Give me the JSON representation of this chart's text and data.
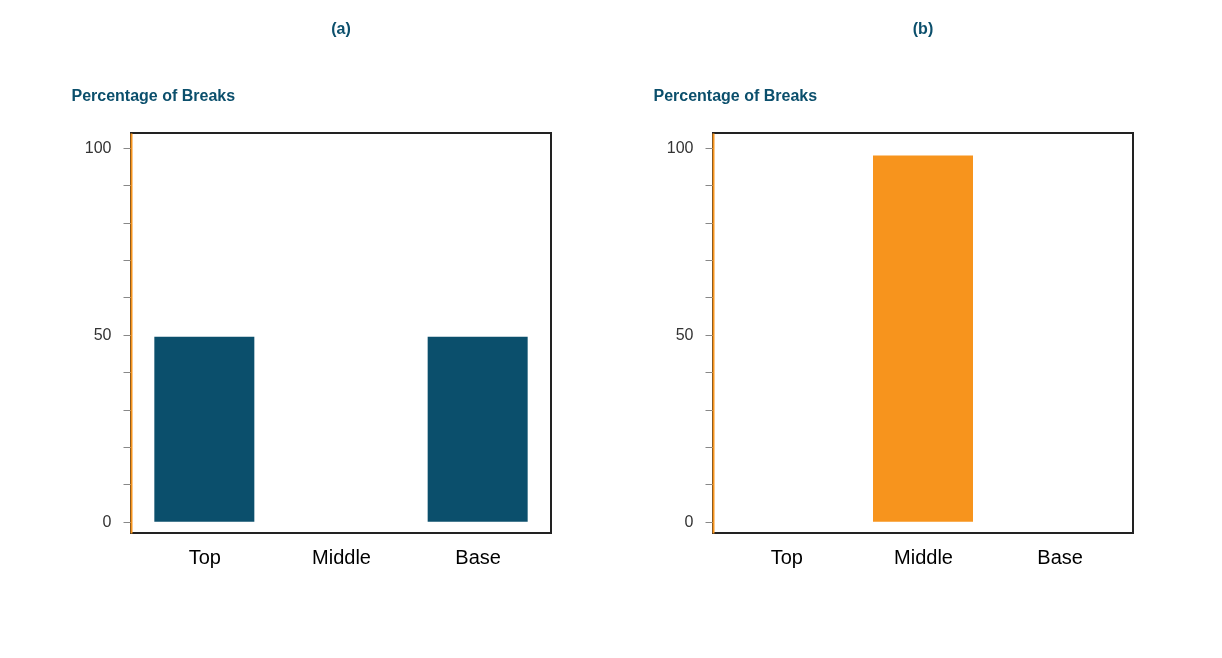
{
  "chart_data": [
    {
      "type": "bar",
      "title": "(a)",
      "ylabel": "Percentage of Breaks",
      "categories": [
        "Top",
        "Middle",
        "Base"
      ],
      "values": [
        49.5,
        0,
        49.5
      ],
      "color": "#0b4f6c",
      "ylim": [
        -3,
        104
      ],
      "yticks": [
        0,
        {
          "value": 10,
          "label": null
        },
        {
          "value": 20,
          "label": null
        },
        {
          "value": 30,
          "label": null
        },
        {
          "value": 40,
          "label": null
        },
        50,
        {
          "value": 60,
          "label": null
        },
        {
          "value": 70,
          "label": null
        },
        {
          "value": 80,
          "label": null
        },
        {
          "value": 90,
          "label": null
        },
        100
      ],
      "grid": false,
      "legend": false
    },
    {
      "type": "bar",
      "title": "(b)",
      "ylabel": "Percentage of Breaks",
      "categories": [
        "Top",
        "Middle",
        "Base"
      ],
      "values": [
        0,
        98,
        0
      ],
      "color": "#f7941d",
      "ylim": [
        -3,
        104
      ],
      "yticks": [
        0,
        {
          "value": 10,
          "label": null
        },
        {
          "value": 20,
          "label": null
        },
        {
          "value": 30,
          "label": null
        },
        {
          "value": 40,
          "label": null
        },
        50,
        {
          "value": 60,
          "label": null
        },
        {
          "value": 70,
          "label": null
        },
        {
          "value": 80,
          "label": null
        },
        {
          "value": 90,
          "label": null
        },
        100
      ],
      "grid": false,
      "legend": false
    }
  ]
}
